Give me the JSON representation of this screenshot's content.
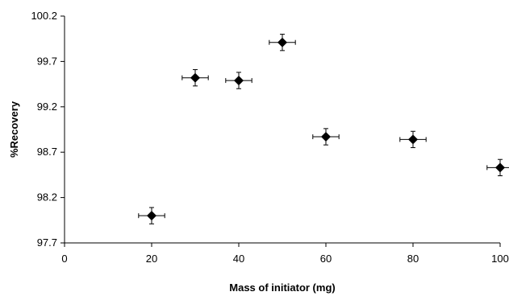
{
  "chart_data": {
    "type": "scatter",
    "title": "",
    "xlabel": "Mass of initiator (mg)",
    "ylabel": "%Recovery",
    "xlim": [
      0,
      100
    ],
    "ylim": [
      97.7,
      100.2
    ],
    "x_ticks": [
      0,
      20,
      40,
      60,
      80,
      100
    ],
    "y_ticks": [
      97.7,
      98.2,
      98.7,
      99.2,
      99.7,
      100.2
    ],
    "x_tick_labels": [
      "0",
      "20",
      "40",
      "60",
      "80",
      "100"
    ],
    "y_tick_labels": [
      "97.7",
      "98.2",
      "98.7",
      "99.2",
      "99.7",
      "100.2"
    ],
    "marker": "diamond",
    "marker_color": "#000000",
    "grid": false,
    "legend": "none",
    "series": [
      {
        "x": [
          20,
          30,
          40,
          50,
          60,
          80,
          100
        ],
        "y": [
          98.0,
          99.52,
          99.49,
          99.91,
          98.87,
          98.84,
          98.53
        ],
        "x_error": [
          3,
          3,
          3,
          3,
          3,
          3,
          3
        ],
        "y_error": [
          0.09,
          0.09,
          0.09,
          0.09,
          0.09,
          0.09,
          0.09
        ]
      }
    ]
  }
}
